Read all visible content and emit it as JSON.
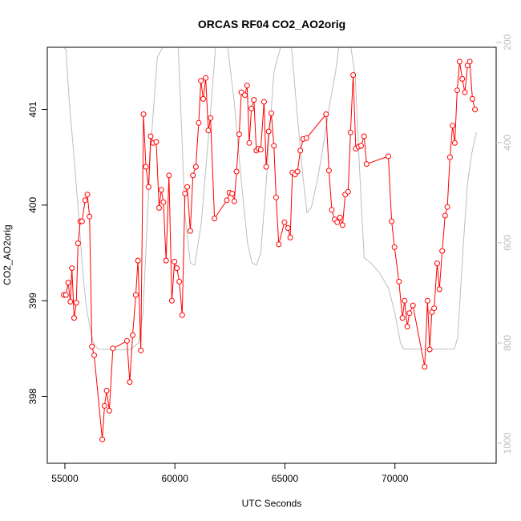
{
  "chart_data": {
    "type": "line",
    "title": "ORCAS RF04 CO2_AO2orig",
    "xlabel": "UTC Seconds",
    "ylabel": "CO2_AO2orig",
    "xlim": [
      54200,
      74600
    ],
    "ylim": [
      397.3,
      401.65
    ],
    "y2lim": [
      210.0,
      1040.0
    ],
    "y2_reversed": true,
    "x_ticks": [
      55000,
      60000,
      65000,
      70000
    ],
    "x_tick_labels": [
      "55000",
      "60000",
      "65000",
      "70000"
    ],
    "y_ticks": [
      398,
      399,
      400,
      401
    ],
    "y_tick_labels": [
      "398",
      "399",
      "400",
      "401"
    ],
    "y2_ticks": [
      200,
      400,
      600,
      800,
      1000
    ],
    "y2_tick_labels": [
      "200",
      "400",
      "600",
      "800",
      "1000"
    ],
    "grid": false,
    "colors": {
      "co2_series": "#ff0000",
      "pressure_series": "#bebebe",
      "axes": "#000000",
      "right_axis": "#bebebe"
    },
    "series": [
      {
        "values": [
          [
            54950,
            399.06
          ],
          [
            55050,
            399.06
          ],
          [
            55150,
            399.19
          ],
          [
            55250,
            398.99
          ],
          [
            55320,
            399.34
          ],
          [
            55420,
            398.82
          ],
          [
            55520,
            398.98
          ],
          [
            55600,
            399.6
          ],
          [
            55700,
            399.83
          ],
          [
            55780,
            399.83
          ],
          [
            55920,
            400.05
          ],
          [
            56020,
            400.11
          ],
          [
            56120,
            399.88
          ],
          [
            56230,
            398.52
          ],
          [
            56330,
            398.43
          ],
          [
            56700,
            397.55
          ],
          [
            56800,
            397.9
          ],
          [
            56900,
            398.06
          ],
          [
            57020,
            397.85
          ],
          [
            57180,
            398.5
          ],
          [
            57820,
            398.58
          ],
          [
            57950,
            398.15
          ],
          [
            58080,
            398.64
          ],
          [
            58220,
            399.06
          ],
          [
            58320,
            399.42
          ],
          [
            58450,
            398.48
          ],
          [
            58570,
            400.95
          ],
          [
            58680,
            400.4
          ],
          [
            58800,
            400.19
          ],
          [
            58900,
            400.72
          ],
          [
            59020,
            400.65
          ],
          [
            59150,
            400.66
          ],
          [
            59280,
            399.97
          ],
          [
            59380,
            400.16
          ],
          [
            59480,
            400.03
          ],
          [
            59600,
            399.42
          ],
          [
            59730,
            400.31
          ],
          [
            59860,
            399.0
          ],
          [
            59980,
            399.41
          ],
          [
            60090,
            399.34
          ],
          [
            60200,
            399.2
          ],
          [
            60330,
            398.85
          ],
          [
            60460,
            400.12
          ],
          [
            60560,
            400.19
          ],
          [
            60700,
            399.73
          ],
          [
            60820,
            400.31
          ],
          [
            60950,
            400.4
          ],
          [
            61080,
            400.86
          ],
          [
            61180,
            401.3
          ],
          [
            61290,
            401.11
          ],
          [
            61400,
            401.33
          ],
          [
            61520,
            400.78
          ],
          [
            61620,
            400.91
          ],
          [
            61800,
            399.86
          ],
          [
            62360,
            400.05
          ],
          [
            62480,
            400.13
          ],
          [
            62600,
            400.12
          ],
          [
            62700,
            400.04
          ],
          [
            62800,
            400.35
          ],
          [
            62920,
            400.74
          ],
          [
            63020,
            401.18
          ],
          [
            63180,
            401.15
          ],
          [
            63280,
            401.25
          ],
          [
            63380,
            400.65
          ],
          [
            63480,
            401.01
          ],
          [
            63590,
            401.1
          ],
          [
            63700,
            400.57
          ],
          [
            63800,
            400.59
          ],
          [
            63900,
            400.58
          ],
          [
            64050,
            401.08
          ],
          [
            64150,
            400.4
          ],
          [
            64260,
            400.77
          ],
          [
            64380,
            400.96
          ],
          [
            64500,
            400.62
          ],
          [
            64600,
            400.08
          ],
          [
            64720,
            399.59
          ],
          [
            64980,
            399.82
          ],
          [
            65140,
            399.76
          ],
          [
            65240,
            399.66
          ],
          [
            65340,
            400.34
          ],
          [
            65460,
            400.32
          ],
          [
            65570,
            400.35
          ],
          [
            65700,
            400.57
          ],
          [
            65830,
            400.69
          ],
          [
            65980,
            400.7
          ],
          [
            66870,
            400.95
          ],
          [
            67000,
            400.36
          ],
          [
            67130,
            399.95
          ],
          [
            67260,
            399.85
          ],
          [
            67380,
            399.82
          ],
          [
            67500,
            399.87
          ],
          [
            67620,
            399.79
          ],
          [
            67740,
            400.11
          ],
          [
            67870,
            400.14
          ],
          [
            67980,
            400.76
          ],
          [
            68100,
            401.36
          ],
          [
            68220,
            400.59
          ],
          [
            68350,
            400.61
          ],
          [
            68460,
            400.62
          ],
          [
            68600,
            400.72
          ],
          [
            68710,
            400.43
          ],
          [
            69700,
            400.51
          ],
          [
            69850,
            399.83
          ],
          [
            69980,
            399.56
          ],
          [
            70180,
            399.2
          ],
          [
            70340,
            398.82
          ],
          [
            70440,
            399.0
          ],
          [
            70560,
            398.73
          ],
          [
            70660,
            398.87
          ],
          [
            70820,
            398.95
          ],
          [
            71350,
            398.31
          ],
          [
            71480,
            399.0
          ],
          [
            71580,
            398.49
          ],
          [
            71680,
            398.88
          ],
          [
            71780,
            398.92
          ],
          [
            71920,
            399.39
          ],
          [
            72020,
            399.12
          ],
          [
            72150,
            399.52
          ],
          [
            72280,
            399.89
          ],
          [
            72380,
            399.98
          ],
          [
            72500,
            400.5
          ],
          [
            72620,
            400.83
          ],
          [
            72720,
            400.65
          ],
          [
            72830,
            401.2
          ],
          [
            72940,
            401.5
          ],
          [
            73060,
            401.32
          ],
          [
            73180,
            401.18
          ],
          [
            73300,
            401.46
          ],
          [
            73400,
            401.5
          ],
          [
            73520,
            401.11
          ],
          [
            73640,
            401.0
          ]
        ]
      },
      {
        "axis": "right",
        "values": [
          [
            54950,
            140
          ],
          [
            55050,
            215
          ],
          [
            55200,
            320
          ],
          [
            55400,
            420
          ],
          [
            55600,
            530
          ],
          [
            55750,
            620
          ],
          [
            55880,
            690
          ],
          [
            56000,
            735
          ],
          [
            56150,
            770
          ],
          [
            56300,
            800
          ],
          [
            56500,
            812
          ],
          [
            57200,
            813
          ],
          [
            57800,
            813
          ],
          [
            58000,
            812
          ],
          [
            58350,
            800
          ],
          [
            58550,
            740
          ],
          [
            58900,
            410
          ],
          [
            59200,
            230
          ],
          [
            59450,
            135
          ],
          [
            59800,
            135
          ],
          [
            60150,
            200
          ],
          [
            60300,
            370
          ],
          [
            60450,
            540
          ],
          [
            60700,
            640
          ],
          [
            60900,
            645
          ],
          [
            61200,
            560
          ],
          [
            61600,
            350
          ],
          [
            61850,
            200
          ],
          [
            62100,
            110
          ],
          [
            62400,
            140
          ],
          [
            62700,
            320
          ],
          [
            63000,
            470
          ],
          [
            63300,
            600
          ],
          [
            63500,
            640
          ],
          [
            63700,
            645
          ],
          [
            63900,
            620
          ],
          [
            64150,
            480
          ],
          [
            64500,
            260
          ],
          [
            64800,
            140
          ],
          [
            65000,
            110
          ],
          [
            65300,
            190
          ],
          [
            65550,
            340
          ],
          [
            65800,
            460
          ],
          [
            66000,
            540
          ],
          [
            66200,
            530
          ],
          [
            66500,
            470
          ],
          [
            66800,
            390
          ],
          [
            67050,
            320
          ],
          [
            67300,
            260
          ],
          [
            67450,
            200
          ],
          [
            67700,
            130
          ],
          [
            67800,
            110
          ],
          [
            68000,
            140
          ],
          [
            68200,
            270
          ],
          [
            68400,
            460
          ],
          [
            68600,
            630
          ],
          [
            68900,
            640
          ],
          [
            69300,
            660
          ],
          [
            69700,
            690
          ],
          [
            70000,
            740
          ],
          [
            70250,
            800
          ],
          [
            70400,
            812
          ],
          [
            71000,
            812
          ],
          [
            72000,
            812
          ],
          [
            72700,
            812
          ],
          [
            72850,
            790
          ],
          [
            73100,
            610
          ],
          [
            73300,
            480
          ],
          [
            73500,
            420
          ],
          [
            73700,
            380
          ]
        ]
      }
    ]
  }
}
